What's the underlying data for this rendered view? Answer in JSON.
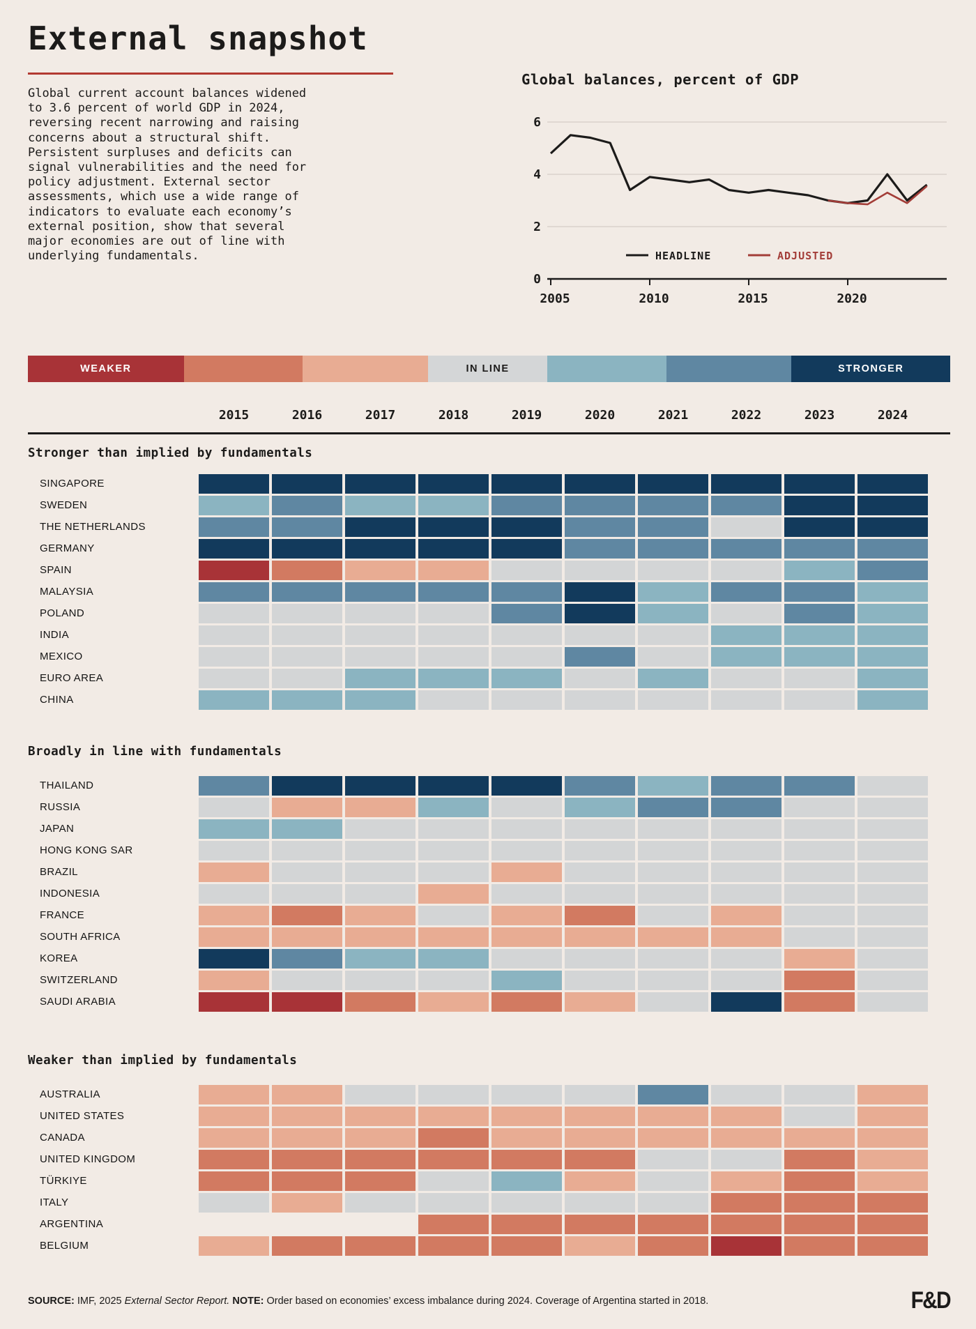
{
  "page": {
    "background": "#f2ebe5"
  },
  "header": {
    "title": "External snapshot",
    "intro": "Global current account balances widened\nto 3.6 percent of world GDP in 2024,\nreversing recent narrowing and raising\nconcerns about a structural shift.\nPersistent surpluses and deficits can\nsignal vulnerabilities and the need for\npolicy adjustment. External sector\nassessments, which use a wide range of\nindicators to evaluate each economy’s\nexternal position, show that several\nmajor economies are out of line with\nunderlying fundamentals."
  },
  "chart_data": [
    {
      "type": "line",
      "title": "Global balances, percent of GDP",
      "x": [
        2005,
        2006,
        2007,
        2008,
        2009,
        2010,
        2011,
        2012,
        2013,
        2014,
        2015,
        2016,
        2017,
        2018,
        2019,
        2020,
        2021,
        2022,
        2023,
        2024
      ],
      "series": [
        {
          "name": "HEADLINE",
          "color": "#1c1b1a",
          "values": [
            4.8,
            5.5,
            5.4,
            5.2,
            3.4,
            3.9,
            3.8,
            3.7,
            3.8,
            3.4,
            3.3,
            3.4,
            3.3,
            3.2,
            3.0,
            2.9,
            3.0,
            4.0,
            3.0,
            3.6
          ]
        },
        {
          "name": "ADJUSTED",
          "color": "#a33d38",
          "values": [
            null,
            null,
            null,
            null,
            null,
            null,
            null,
            null,
            null,
            null,
            null,
            null,
            null,
            null,
            3.0,
            2.9,
            2.85,
            3.3,
            2.9,
            3.55
          ]
        }
      ],
      "ylim": [
        0,
        6
      ],
      "yticks": [
        0,
        2,
        4,
        6
      ],
      "xticks": [
        2005,
        2010,
        2015,
        2020
      ],
      "grid": true,
      "legend_position": "bottom-center"
    },
    {
      "type": "heatmap",
      "columns": [
        2015,
        2016,
        2017,
        2018,
        2019,
        2020,
        2021,
        2022,
        2023,
        2024
      ],
      "scale": {
        "1": "#a83337",
        "2": "#d27a61",
        "3": "#e8ac93",
        "4": "#d3d5d6",
        "5": "#8bb4c1",
        "6": "#5f87a2",
        "7": "#123a5c"
      },
      "sections": [
        {
          "title": "Stronger than implied by fundamentals",
          "rows": [
            {
              "label": "SINGAPORE",
              "values": [
                7,
                7,
                7,
                7,
                7,
                7,
                7,
                7,
                7,
                7
              ]
            },
            {
              "label": "SWEDEN",
              "values": [
                5,
                6,
                5,
                5,
                6,
                6,
                6,
                6,
                7,
                7
              ]
            },
            {
              "label": "THE NETHERLANDS",
              "values": [
                6,
                6,
                7,
                7,
                7,
                6,
                6,
                4,
                7,
                7
              ]
            },
            {
              "label": "GERMANY",
              "values": [
                7,
                7,
                7,
                7,
                7,
                6,
                6,
                6,
                6,
                6
              ]
            },
            {
              "label": "SPAIN",
              "values": [
                1,
                2,
                3,
                3,
                4,
                4,
                4,
                4,
                5,
                6
              ]
            },
            {
              "label": "MALAYSIA",
              "values": [
                6,
                6,
                6,
                6,
                6,
                7,
                5,
                6,
                6,
                5
              ]
            },
            {
              "label": "POLAND",
              "values": [
                4,
                4,
                4,
                4,
                6,
                7,
                5,
                4,
                6,
                5
              ]
            },
            {
              "label": "INDIA",
              "values": [
                4,
                4,
                4,
                4,
                4,
                4,
                4,
                5,
                5,
                5
              ]
            },
            {
              "label": "MEXICO",
              "values": [
                4,
                4,
                4,
                4,
                4,
                6,
                4,
                5,
                5,
                5
              ]
            },
            {
              "label": "EURO AREA",
              "values": [
                4,
                4,
                5,
                5,
                5,
                4,
                5,
                4,
                4,
                5
              ]
            },
            {
              "label": "CHINA",
              "values": [
                5,
                5,
                5,
                4,
                4,
                4,
                4,
                4,
                4,
                5
              ]
            }
          ]
        },
        {
          "title": "Broadly in line with fundamentals",
          "rows": [
            {
              "label": "THAILAND",
              "values": [
                6,
                7,
                7,
                7,
                7,
                6,
                5,
                6,
                6,
                4
              ]
            },
            {
              "label": "RUSSIA",
              "values": [
                4,
                3,
                3,
                5,
                4,
                5,
                6,
                6,
                4,
                4
              ]
            },
            {
              "label": "JAPAN",
              "values": [
                5,
                5,
                4,
                4,
                4,
                4,
                4,
                4,
                4,
                4
              ]
            },
            {
              "label": "HONG KONG SAR",
              "values": [
                4,
                4,
                4,
                4,
                4,
                4,
                4,
                4,
                4,
                4
              ]
            },
            {
              "label": "BRAZIL",
              "values": [
                3,
                4,
                4,
                4,
                3,
                4,
                4,
                4,
                4,
                4
              ]
            },
            {
              "label": "INDONESIA",
              "values": [
                4,
                4,
                4,
                3,
                4,
                4,
                4,
                4,
                4,
                4
              ]
            },
            {
              "label": "FRANCE",
              "values": [
                3,
                2,
                3,
                4,
                3,
                2,
                4,
                3,
                4,
                4
              ]
            },
            {
              "label": "SOUTH AFRICA",
              "values": [
                3,
                3,
                3,
                3,
                3,
                3,
                3,
                3,
                4,
                4
              ]
            },
            {
              "label": "KOREA",
              "values": [
                7,
                6,
                5,
                5,
                4,
                4,
                4,
                4,
                3,
                4
              ]
            },
            {
              "label": "SWITZERLAND",
              "values": [
                3,
                4,
                4,
                4,
                5,
                4,
                4,
                4,
                2,
                4
              ]
            },
            {
              "label": "SAUDI ARABIA",
              "values": [
                1,
                1,
                2,
                3,
                2,
                3,
                4,
                7,
                2,
                4
              ]
            }
          ]
        },
        {
          "title": "Weaker than implied by fundamentals",
          "rows": [
            {
              "label": "AUSTRALIA",
              "values": [
                3,
                3,
                4,
                4,
                4,
                4,
                6,
                4,
                4,
                3
              ]
            },
            {
              "label": "UNITED STATES",
              "values": [
                3,
                3,
                3,
                3,
                3,
                3,
                3,
                3,
                4,
                3
              ]
            },
            {
              "label": "CANADA",
              "values": [
                3,
                3,
                3,
                2,
                3,
                3,
                3,
                3,
                3,
                3
              ]
            },
            {
              "label": "UNITED KINGDOM",
              "values": [
                2,
                2,
                2,
                2,
                2,
                2,
                4,
                4,
                2,
                3
              ]
            },
            {
              "label": "TÜRKIYE",
              "values": [
                2,
                2,
                2,
                4,
                5,
                3,
                4,
                3,
                2,
                3
              ]
            },
            {
              "label": "ITALY",
              "values": [
                4,
                3,
                4,
                4,
                4,
                4,
                4,
                2,
                2,
                2
              ]
            },
            {
              "label": "ARGENTINA",
              "values": [
                null,
                null,
                null,
                2,
                2,
                2,
                2,
                2,
                2,
                2
              ]
            },
            {
              "label": "BELGIUM",
              "values": [
                3,
                2,
                2,
                2,
                2,
                3,
                2,
                1,
                2,
                2
              ]
            }
          ]
        }
      ]
    }
  ],
  "colorbar": {
    "segments": [
      {
        "color": "#a83337",
        "flex": 16.9,
        "label": "WEAKER",
        "label_color": "#ffffff"
      },
      {
        "color": "#d27a61",
        "flex": 12.9,
        "label": "",
        "label_color": ""
      },
      {
        "color": "#e8ac93",
        "flex": 13.6,
        "label": "",
        "label_color": ""
      },
      {
        "color": "#d4d6d7",
        "flex": 12.9,
        "label": "IN LINE",
        "label_color": "#1c1b1a"
      },
      {
        "color": "#8bb4c1",
        "flex": 12.9,
        "label": "",
        "label_color": ""
      },
      {
        "color": "#5f87a2",
        "flex": 13.6,
        "label": "",
        "label_color": ""
      },
      {
        "color": "#123a5c",
        "flex": 17.2,
        "label": "STRONGER",
        "label_color": "#ffffff"
      }
    ]
  },
  "footer": {
    "source_label": "SOURCE:",
    "source_text": " IMF, 2025 ",
    "source_italic": "External Sector Report.",
    "note_label": " NOTE:",
    "note_text": " Order based on economies’ excess imbalance during 2024. Coverage of Argentina started in 2018.",
    "logo": "F&D"
  }
}
